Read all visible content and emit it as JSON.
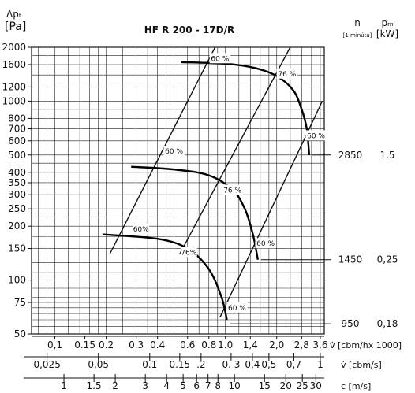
{
  "chart_data": {
    "type": "line",
    "title": "HF R 200 - 17D/R",
    "y_axis": {
      "label_top": "Δpₜ",
      "label_unit": "[Pa]",
      "scale": "log",
      "range": [
        50,
        2000
      ],
      "ticks": [
        {
          "value": 2000,
          "label": "2000"
        },
        {
          "value": 1600,
          "label": "1600"
        },
        {
          "value": 1200,
          "label": "1200"
        },
        {
          "value": 1000,
          "label": "1000"
        },
        {
          "value": 800,
          "label": "800"
        },
        {
          "value": 700,
          "label": "700"
        },
        {
          "value": 600,
          "label": "600"
        },
        {
          "value": 500,
          "label": "500"
        },
        {
          "value": 400,
          "label": "400"
        },
        {
          "value": 350,
          "label": "350"
        },
        {
          "value": 300,
          "label": "300"
        },
        {
          "value": 250,
          "label": "250"
        },
        {
          "value": 200,
          "label": "200"
        },
        {
          "value": 150,
          "label": "150"
        },
        {
          "value": 100,
          "label": "100"
        },
        {
          "value": 75,
          "label": "75"
        },
        {
          "value": 50,
          "label": "50"
        }
      ]
    },
    "x_axis": {
      "scale": "log",
      "range_cbm_hx1000": [
        0.073,
        3.8
      ],
      "flow_ticks": [
        {
          "value": 0.1,
          "label": "0,1"
        },
        {
          "value": 0.15,
          "label": "0.15"
        },
        {
          "value": 0.2,
          "label": "0.2"
        },
        {
          "value": 0.3,
          "label": "0.3"
        },
        {
          "value": 0.4,
          "label": "0.4"
        },
        {
          "value": 0.6,
          "label": "0.6"
        },
        {
          "value": 0.8,
          "label": "0.8"
        },
        {
          "value": 1.0,
          "label": "1.0"
        },
        {
          "value": 1.4,
          "label": "1,4"
        },
        {
          "value": 2.0,
          "label": "2,0"
        },
        {
          "value": 2.8,
          "label": "2,8"
        },
        {
          "value": 3.6,
          "label": "3,6"
        }
      ],
      "flow_label": "v̇ [cbm/hx 1000]",
      "cbms_ticks": [
        {
          "value": 0.025,
          "label": "0,025"
        },
        {
          "value": 0.05,
          "label": "0.05"
        },
        {
          "value": 0.1,
          "label": "0.1"
        },
        {
          "value": 0.15,
          "label": "0.15"
        },
        {
          "value": 0.2,
          "label": ".2"
        },
        {
          "value": 0.3,
          "label": "0. 3"
        },
        {
          "value": 0.4,
          "label": "0,4"
        },
        {
          "value": 0.5,
          "label": "0,5"
        },
        {
          "value": 0.7,
          "label": "0,7"
        },
        {
          "value": 1.0,
          "label": "1"
        }
      ],
      "cbms_label": "v̇ [cbm/s]",
      "speed_ticks": [
        {
          "value": 1,
          "label": "1"
        },
        {
          "value": 1.5,
          "label": "1.5"
        },
        {
          "value": 2,
          "label": "2"
        },
        {
          "value": 3,
          "label": "3"
        },
        {
          "value": 4,
          "label": "4"
        },
        {
          "value": 5,
          "label": "5"
        },
        {
          "value": 6,
          "label": "6"
        },
        {
          "value": 7,
          "label": "7"
        },
        {
          "value": 8,
          "label": "8"
        },
        {
          "value": 10,
          "label": "10"
        },
        {
          "value": 15,
          "label": "15"
        },
        {
          "value": 20,
          "label": "20"
        },
        {
          "value": 25,
          "label": "25"
        },
        {
          "value": 30,
          "label": "30"
        }
      ],
      "speed_label": "c [m/s]"
    },
    "right_table": {
      "n_header": "n",
      "n_sub": "[1 minúta]",
      "p_header": "pₘ",
      "p_unit": "[kW]",
      "rows": [
        {
          "n": "2850",
          "p": "1.5",
          "dp": 500
        },
        {
          "n": "1450",
          "p": "0,25",
          "dp": 130
        },
        {
          "n": "950",
          "p": "0,18",
          "dp": 57
        }
      ]
    },
    "fan_curves": [
      {
        "name": "2850",
        "points": [
          [
            0.55,
            1650
          ],
          [
            1.0,
            1620
          ],
          [
            1.5,
            1530
          ],
          [
            2.0,
            1380
          ],
          [
            2.5,
            1150
          ],
          [
            2.8,
            900
          ],
          [
            3.0,
            700
          ],
          [
            3.1,
            500
          ]
        ]
      },
      {
        "name": "1450",
        "points": [
          [
            0.28,
            430
          ],
          [
            0.5,
            415
          ],
          [
            0.8,
            385
          ],
          [
            1.1,
            320
          ],
          [
            1.3,
            250
          ],
          [
            1.45,
            180
          ],
          [
            1.55,
            130
          ]
        ]
      },
      {
        "name": "950",
        "points": [
          [
            0.19,
            180
          ],
          [
            0.4,
            170
          ],
          [
            0.6,
            150
          ],
          [
            0.8,
            115
          ],
          [
            0.95,
            80
          ],
          [
            1.02,
            60
          ]
        ]
      }
    ],
    "efficiency_lines": [
      {
        "label": "60 %",
        "points": [
          [
            0.21,
            140
          ],
          [
            0.87,
            2000
          ]
        ]
      },
      {
        "label": "76 %",
        "points": [
          [
            0.54,
            140
          ],
          [
            2.4,
            2000
          ]
        ]
      },
      {
        "label": "60 %",
        "points": [
          [
            0.93,
            62
          ],
          [
            3.7,
            1000
          ]
        ]
      }
    ],
    "efficiency_labels": [
      {
        "text": "60 %",
        "x": 0.93,
        "y": 1730
      },
      {
        "text": "76 %",
        "x": 2.3,
        "y": 1420
      },
      {
        "text": "60 %",
        "x": 3.4,
        "y": 640
      },
      {
        "text": "60 %",
        "x": 0.5,
        "y": 525
      },
      {
        "text": "76 %",
        "x": 1.1,
        "y": 318
      },
      {
        "text": "60%",
        "x": 0.32,
        "y": 192
      },
      {
        "text": "60 %",
        "x": 1.72,
        "y": 160
      },
      {
        "text": "76%",
        "x": 0.61,
        "y": 143
      },
      {
        "text": "60 %",
        "x": 1.17,
        "y": 70
      }
    ]
  }
}
